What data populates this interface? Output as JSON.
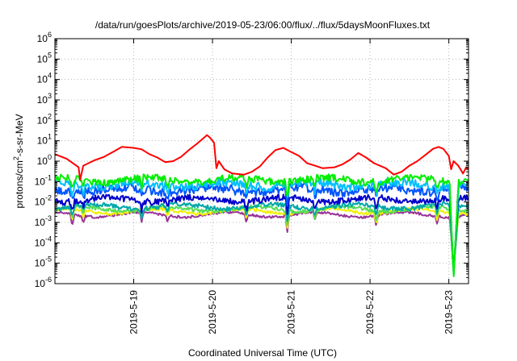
{
  "chart_data": {
    "type": "line",
    "title": "/data/run/goesPlots/archive/2019-05-23/06:00/flux/../flux/5daysMoonFluxes.txt",
    "xlabel": "Coordinated Universal Time (UTC)",
    "ylabel": {
      "pre": "protons/cm",
      "sup": "2",
      "post": "-s-sr-MeV"
    },
    "yscale": "log",
    "ylim": [
      1e-06,
      1000000.0
    ],
    "xlim": [
      0,
      5.25
    ],
    "x_unit": "days since 2019-05-18 00:00 UTC",
    "grid": true,
    "legend": "none",
    "x_ticks": [
      {
        "x": 1,
        "label": "2019-5-19"
      },
      {
        "x": 2,
        "label": "2019-5-20"
      },
      {
        "x": 3,
        "label": "2019-5-21"
      },
      {
        "x": 4,
        "label": "2019-5-22"
      },
      {
        "x": 5,
        "label": "2019-5-23"
      }
    ],
    "y_ticks": [
      {
        "exp": -6,
        "base": "10",
        "sup": "-6"
      },
      {
        "exp": -5,
        "base": "10",
        "sup": "-5"
      },
      {
        "exp": -4,
        "base": "10",
        "sup": "-4"
      },
      {
        "exp": -3,
        "base": "10",
        "sup": "-3"
      },
      {
        "exp": -2,
        "base": "10",
        "sup": "-2"
      },
      {
        "exp": -1,
        "base": "10",
        "sup": "-1"
      },
      {
        "exp": 0,
        "base": "10",
        "sup": "0"
      },
      {
        "exp": 1,
        "base": "10",
        "sup": "1"
      },
      {
        "exp": 2,
        "base": "10",
        "sup": "2"
      },
      {
        "exp": 3,
        "base": "10",
        "sup": "3"
      },
      {
        "exp": 4,
        "base": "10",
        "sup": "4"
      },
      {
        "exp": 5,
        "base": "10",
        "sup": "5"
      },
      {
        "exp": 6,
        "base": "10",
        "sup": "6"
      }
    ],
    "series": [
      {
        "color": "#ff0000",
        "width": 2,
        "points": [
          [
            0.0,
            2.2
          ],
          [
            0.15,
            1.3
          ],
          [
            0.3,
            0.5
          ],
          [
            0.32,
            0.12
          ],
          [
            0.36,
            0.6
          ],
          [
            0.5,
            1.1
          ],
          [
            0.62,
            1.6
          ],
          [
            0.75,
            3.0
          ],
          [
            0.85,
            5.0
          ],
          [
            1.0,
            4.5
          ],
          [
            1.1,
            3.8
          ],
          [
            1.2,
            2.2
          ],
          [
            1.3,
            1.5
          ],
          [
            1.4,
            0.9
          ],
          [
            1.5,
            1.0
          ],
          [
            1.6,
            1.6
          ],
          [
            1.7,
            3.5
          ],
          [
            1.8,
            7.0
          ],
          [
            1.9,
            15
          ],
          [
            1.93,
            19
          ],
          [
            1.97,
            14
          ],
          [
            2.02,
            8.0
          ],
          [
            2.05,
            0.45
          ],
          [
            2.08,
            1.0
          ],
          [
            2.15,
            0.4
          ],
          [
            2.25,
            0.25
          ],
          [
            2.4,
            0.22
          ],
          [
            2.5,
            0.3
          ],
          [
            2.6,
            0.55
          ],
          [
            2.7,
            1.5
          ],
          [
            2.8,
            3.5
          ],
          [
            2.9,
            4.5
          ],
          [
            3.0,
            2.8
          ],
          [
            3.1,
            1.8
          ],
          [
            3.2,
            0.8
          ],
          [
            3.3,
            0.6
          ],
          [
            3.4,
            0.45
          ],
          [
            3.55,
            0.5
          ],
          [
            3.65,
            0.7
          ],
          [
            3.75,
            1.2
          ],
          [
            3.85,
            2.5
          ],
          [
            3.95,
            1.5
          ],
          [
            4.05,
            0.8
          ],
          [
            4.2,
            0.45
          ],
          [
            4.3,
            0.22
          ],
          [
            4.4,
            0.3
          ],
          [
            4.5,
            0.6
          ],
          [
            4.6,
            1.0
          ],
          [
            4.7,
            2.0
          ],
          [
            4.8,
            4.0
          ],
          [
            4.87,
            5.0
          ],
          [
            4.93,
            4.0
          ],
          [
            5.0,
            1.8
          ],
          [
            5.03,
            0.4
          ],
          [
            5.06,
            1.0
          ],
          [
            5.12,
            0.6
          ],
          [
            5.18,
            0.25
          ],
          [
            5.22,
            0.5
          ],
          [
            5.25,
            0.4
          ]
        ]
      },
      {
        "color": "#00ee00",
        "width": 2,
        "base": 0.12,
        "amp": 0.35,
        "seed": 1
      },
      {
        "color": "#00bfff",
        "width": 2,
        "base": 0.07,
        "amp": 0.4,
        "seed": 2
      },
      {
        "color": "#0055ff",
        "width": 2,
        "base": 0.04,
        "amp": 0.45,
        "seed": 3
      },
      {
        "color": "#0000cc",
        "width": 2,
        "base": 0.013,
        "amp": 0.3,
        "seed": 4
      },
      {
        "color": "#00a8a8",
        "width": 2,
        "base": 0.006,
        "amp": 0.22,
        "seed": 5
      },
      {
        "color": "#55dd55",
        "width": 2,
        "base": 0.0045,
        "amp": 0.18,
        "seed": 6
      },
      {
        "color": "#f0f000",
        "width": 2,
        "base": 0.0035,
        "amp": 0.15,
        "seed": 7
      },
      {
        "color": "#993399",
        "width": 2,
        "base": 0.0024,
        "amp": 0.12,
        "seed": 8
      }
    ],
    "dips": [
      {
        "x": 0.22,
        "depth": 0.55
      },
      {
        "x": 0.36,
        "depth": 0.35
      },
      {
        "x": 1.1,
        "depth": 0.45
      },
      {
        "x": 1.43,
        "depth": 0.35
      },
      {
        "x": 2.43,
        "depth": 0.45
      },
      {
        "x": 2.95,
        "depth": 0.75
      },
      {
        "x": 3.3,
        "depth": 0.4
      },
      {
        "x": 4.08,
        "depth": 0.55
      },
      {
        "x": 4.85,
        "depth": 0.4
      }
    ],
    "event": {
      "start": 5.01,
      "min": 5.06,
      "end": 5.12,
      "floor": 1.2e-06
    }
  }
}
